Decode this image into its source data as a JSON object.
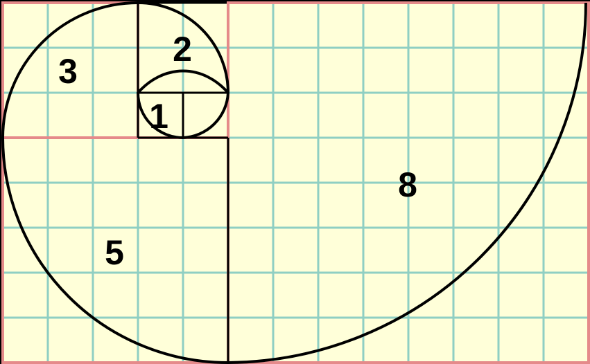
{
  "colors": {
    "paper": "#ffffd9",
    "grid": "#8fcfc3",
    "square_border": "#e58a8a",
    "ink": "#000000",
    "frame": "#000000"
  },
  "squares": [
    {
      "label": "1",
      "size": 1
    },
    {
      "label": "1",
      "size": 1
    },
    {
      "label": "2",
      "size": 2
    },
    {
      "label": "3",
      "size": 3
    },
    {
      "label": "5",
      "size": 5
    },
    {
      "label": "8",
      "size": 8
    }
  ]
}
